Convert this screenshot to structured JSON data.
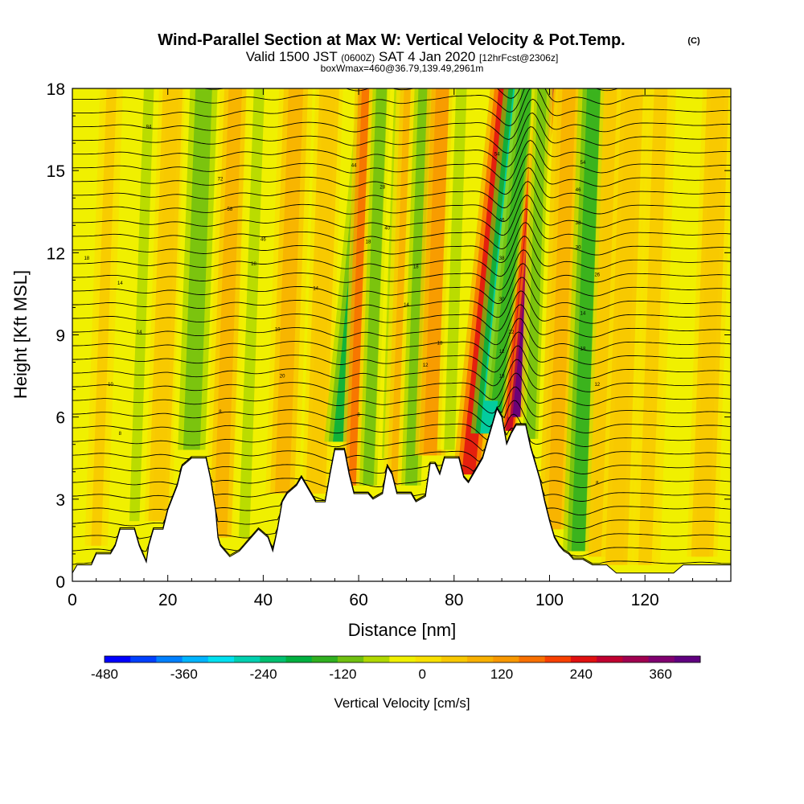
{
  "chart_data": {
    "type": "heatmap",
    "title": "Wind-Parallel Section at Max W: Vertical Velocity & Pot.Temp.",
    "title_mark": "(C)",
    "subtitle_main_a": "Valid 1500 JST",
    "subtitle_small_a": "(0600Z)",
    "subtitle_main_b": "SAT 4 Jan 2020",
    "subtitle_small_b": "[12hrFcst@2306z]",
    "subtitle2": "boxWmax=460@36.79,139.49,2961m",
    "xlabel": "Distance [nm]",
    "ylabel": "Height [Kft MSL]",
    "xlim": [
      0,
      138
    ],
    "ylim": [
      0,
      18
    ],
    "xticks": [
      0,
      20,
      40,
      60,
      80,
      100,
      120
    ],
    "yticks": [
      0,
      3,
      6,
      9,
      12,
      15,
      18
    ],
    "colorbar": {
      "label": "Vertical Velocity [cm/s]",
      "range": [
        -480,
        420
      ],
      "ticks": [
        -480,
        -360,
        -240,
        -120,
        0,
        120,
        240,
        360
      ],
      "colors": [
        "#0000ff",
        "#0040ff",
        "#0080ff",
        "#00b4ff",
        "#00e0f0",
        "#00d0b0",
        "#00c070",
        "#00b040",
        "#30b020",
        "#70c010",
        "#b0d800",
        "#f0f000",
        "#f8e000",
        "#f8c800",
        "#f8b000",
        "#f89800",
        "#f87000",
        "#f84000",
        "#e01010",
        "#c00030",
        "#a00050",
        "#800070",
        "#600080"
      ]
    },
    "velocity_bands": [
      {
        "x": 5,
        "w": 1.5,
        "v": 40
      },
      {
        "x": 13,
        "w": 1.5,
        "v": -50
      },
      {
        "x": 18,
        "w": 1.8,
        "v": 60
      },
      {
        "x": 25,
        "w": 2.5,
        "v": -90
      },
      {
        "x": 31,
        "w": 2.0,
        "v": 80
      },
      {
        "x": 36,
        "w": 1.6,
        "v": -50
      },
      {
        "x": 44,
        "w": 2.2,
        "v": 80
      },
      {
        "x": 51,
        "w": 1.8,
        "v": 50
      },
      {
        "x": 56,
        "w": 2.0,
        "v": -180
      },
      {
        "x": 59,
        "w": 1.6,
        "v": 160
      },
      {
        "x": 62,
        "w": 1.6,
        "v": -90
      },
      {
        "x": 66,
        "w": 1.6,
        "v": -70
      },
      {
        "x": 68,
        "w": 1.8,
        "v": 80
      },
      {
        "x": 71,
        "w": 1.8,
        "v": -100
      },
      {
        "x": 75,
        "w": 2.0,
        "v": 110
      },
      {
        "x": 79,
        "w": 1.6,
        "v": -60
      },
      {
        "x": 83,
        "w": 2.0,
        "v": 230
      },
      {
        "x": 87,
        "w": 2.2,
        "v": -260
      },
      {
        "x": 89,
        "w": 1.6,
        "v": -160
      },
      {
        "x": 91.5,
        "w": 1.0,
        "v": 300
      },
      {
        "x": 93,
        "w": 1.1,
        "v": 460
      },
      {
        "x": 96,
        "w": 1.4,
        "v": -120
      },
      {
        "x": 101,
        "w": 2.0,
        "v": 90
      },
      {
        "x": 106,
        "w": 2.0,
        "v": -150
      },
      {
        "x": 110,
        "w": 1.6,
        "v": 60
      },
      {
        "x": 114,
        "w": 2.0,
        "v": 50
      },
      {
        "x": 120,
        "w": 2.0,
        "v": 40
      },
      {
        "x": 132,
        "w": 2.0,
        "v": 50
      }
    ],
    "terrain": [
      [
        0,
        0.3
      ],
      [
        1,
        0.6
      ],
      [
        4,
        0.6
      ],
      [
        5,
        1.0
      ],
      [
        8,
        1.0
      ],
      [
        9,
        1.3
      ],
      [
        10,
        1.9
      ],
      [
        13,
        1.9
      ],
      [
        14,
        1.3
      ],
      [
        15,
        0.9
      ],
      [
        15.5,
        0.7
      ],
      [
        16,
        1.3
      ],
      [
        17,
        1.9
      ],
      [
        19,
        1.9
      ],
      [
        20,
        2.6
      ],
      [
        22,
        3.5
      ],
      [
        23,
        4.2
      ],
      [
        25,
        4.5
      ],
      [
        28,
        4.5
      ],
      [
        29,
        3.7
      ],
      [
        30,
        2.6
      ],
      [
        30.5,
        1.6
      ],
      [
        31,
        1.3
      ],
      [
        32,
        1.1
      ],
      [
        33,
        0.9
      ],
      [
        35,
        1.1
      ],
      [
        37,
        1.5
      ],
      [
        39,
        1.9
      ],
      [
        41,
        1.6
      ],
      [
        42,
        1.1
      ],
      [
        43,
        1.9
      ],
      [
        44,
        2.9
      ],
      [
        45,
        3.2
      ],
      [
        47,
        3.5
      ],
      [
        48,
        3.8
      ],
      [
        49,
        3.5
      ],
      [
        50,
        3.2
      ],
      [
        51,
        2.9
      ],
      [
        53,
        2.9
      ],
      [
        54,
        3.9
      ],
      [
        55,
        4.8
      ],
      [
        57,
        4.8
      ],
      [
        58,
        3.9
      ],
      [
        59,
        3.2
      ],
      [
        62,
        3.2
      ],
      [
        63,
        3.0
      ],
      [
        65,
        3.2
      ],
      [
        66,
        4.2
      ],
      [
        67,
        3.9
      ],
      [
        68,
        3.2
      ],
      [
        71,
        3.2
      ],
      [
        72,
        2.9
      ],
      [
        74,
        3.1
      ],
      [
        75,
        4.3
      ],
      [
        76,
        4.3
      ],
      [
        77,
        3.9
      ],
      [
        78,
        4.5
      ],
      [
        81,
        4.5
      ],
      [
        82,
        3.8
      ],
      [
        83,
        3.6
      ],
      [
        84,
        3.9
      ],
      [
        86,
        4.5
      ],
      [
        87,
        5.1
      ],
      [
        88,
        5.7
      ],
      [
        89,
        6.3
      ],
      [
        90,
        6.0
      ],
      [
        91,
        5.0
      ],
      [
        92,
        5.4
      ],
      [
        93,
        5.7
      ],
      [
        95,
        5.7
      ],
      [
        96,
        4.9
      ],
      [
        97,
        4.3
      ],
      [
        98,
        3.7
      ],
      [
        99,
        2.9
      ],
      [
        100,
        2.2
      ],
      [
        101,
        1.6
      ],
      [
        102,
        1.3
      ],
      [
        103,
        1.1
      ],
      [
        104,
        1.0
      ],
      [
        105,
        0.8
      ],
      [
        107,
        0.8
      ],
      [
        109,
        0.6
      ],
      [
        112,
        0.6
      ],
      [
        114,
        0.3
      ],
      [
        117,
        0.3
      ],
      [
        119,
        0.3
      ],
      [
        122,
        0.3
      ],
      [
        126,
        0.3
      ],
      [
        128,
        0.6
      ],
      [
        130,
        0.6
      ],
      [
        132,
        0.6
      ],
      [
        138,
        0.6
      ]
    ],
    "isentrope_labels": [
      {
        "x": 16,
        "y": 16.6,
        "text": "84"
      },
      {
        "x": 31,
        "y": 14.7,
        "text": "72"
      },
      {
        "x": 33,
        "y": 13.6,
        "text": "58"
      },
      {
        "x": 40,
        "y": 12.5,
        "text": "46"
      },
      {
        "x": 3,
        "y": 11.8,
        "text": "18"
      },
      {
        "x": 38,
        "y": 11.6,
        "text": "18"
      },
      {
        "x": 10,
        "y": 10.9,
        "text": "14"
      },
      {
        "x": 51,
        "y": 10.7,
        "text": "14"
      },
      {
        "x": 14,
        "y": 9.1,
        "text": "14"
      },
      {
        "x": 43,
        "y": 9.2,
        "text": "10"
      },
      {
        "x": 44,
        "y": 7.5,
        "text": "20"
      },
      {
        "x": 8,
        "y": 7.2,
        "text": "10"
      },
      {
        "x": 31,
        "y": 6.2,
        "text": "8"
      },
      {
        "x": 10,
        "y": 5.4,
        "text": "8"
      },
      {
        "x": 59,
        "y": 15.2,
        "text": "44"
      },
      {
        "x": 65,
        "y": 14.4,
        "text": "28"
      },
      {
        "x": 66,
        "y": 12.9,
        "text": "40"
      },
      {
        "x": 62,
        "y": 12.4,
        "text": "18"
      },
      {
        "x": 72,
        "y": 11.5,
        "text": "18"
      },
      {
        "x": 70,
        "y": 10.1,
        "text": "14"
      },
      {
        "x": 77,
        "y": 8.7,
        "text": "18"
      },
      {
        "x": 74,
        "y": 7.9,
        "text": "12"
      },
      {
        "x": 60,
        "y": 6.1,
        "text": "8"
      },
      {
        "x": 89,
        "y": 15.6,
        "text": "54"
      },
      {
        "x": 90,
        "y": 13.2,
        "text": "46"
      },
      {
        "x": 90,
        "y": 11.8,
        "text": "38"
      },
      {
        "x": 90,
        "y": 10.3,
        "text": "30"
      },
      {
        "x": 92,
        "y": 9.1,
        "text": "22"
      },
      {
        "x": 90,
        "y": 8.4,
        "text": "12"
      },
      {
        "x": 90,
        "y": 7.5,
        "text": "18"
      },
      {
        "x": 107,
        "y": 15.3,
        "text": "54"
      },
      {
        "x": 106,
        "y": 14.3,
        "text": "46"
      },
      {
        "x": 106,
        "y": 13.1,
        "text": "38"
      },
      {
        "x": 106,
        "y": 12.2,
        "text": "30"
      },
      {
        "x": 110,
        "y": 11.2,
        "text": "26"
      },
      {
        "x": 107,
        "y": 9.8,
        "text": "14"
      },
      {
        "x": 107,
        "y": 8.5,
        "text": "18"
      },
      {
        "x": 110,
        "y": 7.2,
        "text": "12"
      },
      {
        "x": 110,
        "y": 3.6,
        "text": "8"
      }
    ]
  }
}
